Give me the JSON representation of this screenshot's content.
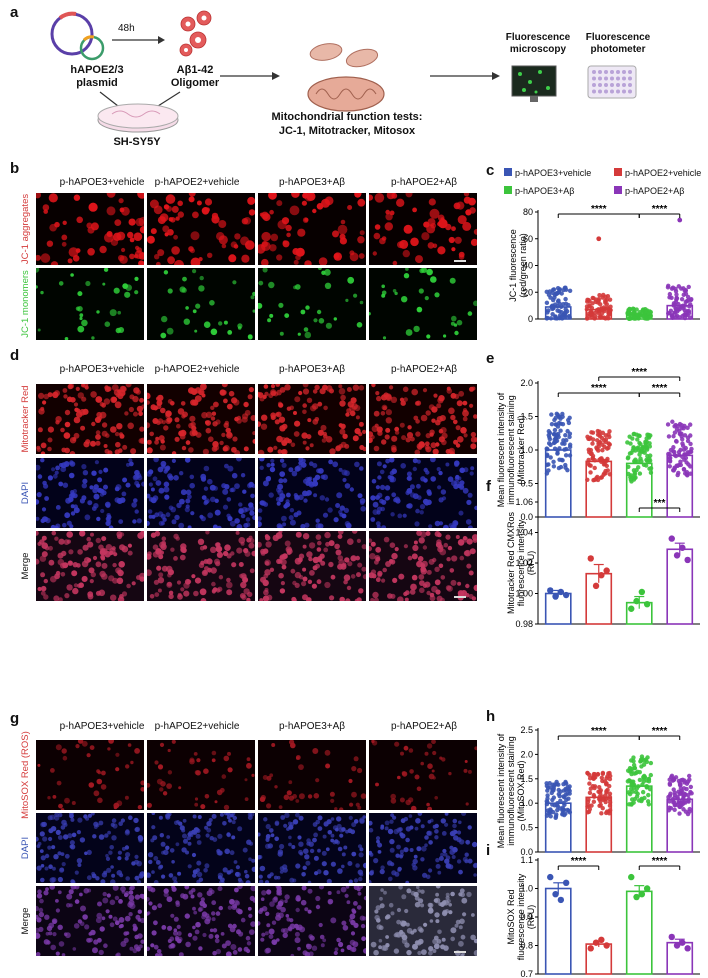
{
  "panels": {
    "a": "a",
    "b": "b",
    "c": "c",
    "d": "d",
    "e": "e",
    "f": "f",
    "g": "g",
    "h": "h",
    "i": "i"
  },
  "schematic": {
    "plasmid_label": "hAPOE2/3\nplasmid",
    "time_label": "48h",
    "oligomer_label": "Aβ1-42\nOligomer",
    "cell_label": "SH-SY5Y",
    "tests_label": "Mitochondrial function tests:\nJC-1, Mitotracker, Mitosox",
    "microscopy_label": "Fluorescence\nmicroscopy",
    "photometer_label": "Fluorescence\nphotometer"
  },
  "groups": [
    "p-hAPOE3+vehicle",
    "p-hAPOE2+vehicle",
    "p-hAPOE3+Aβ",
    "p-hAPOE2+Aβ"
  ],
  "colors": {
    "g1": "#3a55b4",
    "g2": "#d43a3a",
    "g3": "#3cc43c",
    "g4": "#8a35b8"
  },
  "rows": {
    "b": [
      "JC-1 aggregates",
      "JC-1 monomers"
    ],
    "d": [
      "Mitotracker Red",
      "DAPI",
      "Merge"
    ],
    "g": [
      "MitoSOX Red (ROS)",
      "DAPI",
      "Merge"
    ]
  },
  "sig": {
    "four": "****",
    "three": "***"
  },
  "chart_data": [
    {
      "panel": "c",
      "type": "bar",
      "categories": [
        "p-hAPOE3+vehicle",
        "p-hAPOE2+vehicle",
        "p-hAPOE3+Aβ",
        "p-hAPOE2+Aβ"
      ],
      "values": [
        9,
        7,
        3,
        10
      ],
      "ylabel": "JC-1 fluorescence\n(red/green ratio)",
      "ylim": [
        0,
        80
      ],
      "yticks": [
        0,
        20,
        40,
        60,
        80
      ],
      "outliers": [
        null,
        60,
        null,
        74
      ],
      "significance": [
        {
          "from": 1,
          "to": 3,
          "label": "****",
          "level": 0
        },
        {
          "from": 3,
          "to": 4,
          "label": "****",
          "level": 0
        }
      ]
    },
    {
      "panel": "e",
      "type": "bar",
      "categories": [
        "p-hAPOE3+vehicle",
        "p-hAPOE2+vehicle",
        "p-hAPOE3+Aβ",
        "p-hAPOE2+Aβ"
      ],
      "values": [
        1.0,
        0.83,
        0.8,
        0.92
      ],
      "ylabel": "Mean fluorescent intensity of\nimmunofluorescent staining\n(Mitotracker Red)",
      "ylim": [
        0,
        2.0
      ],
      "yticks": [
        0,
        0.5,
        1.0,
        1.5,
        2.0
      ],
      "significance": [
        {
          "from": 2,
          "to": 4,
          "label": "****",
          "level": 1
        },
        {
          "from": 1,
          "to": 3,
          "label": "****",
          "level": 0
        },
        {
          "from": 3,
          "to": 4,
          "label": "****",
          "level": 0
        }
      ]
    },
    {
      "panel": "f",
      "type": "bar",
      "categories": [
        "p-hAPOE3+vehicle",
        "p-hAPOE2+vehicle",
        "p-hAPOE3+Aβ",
        "p-hAPOE2+Aβ"
      ],
      "values": [
        1.0,
        1.013,
        0.994,
        1.029
      ],
      "errors": [
        0.002,
        0.006,
        0.004,
        0.004
      ],
      "points": [
        [
          1.002,
          0.998,
          1.001,
          0.999
        ],
        [
          1.023,
          1.005,
          1.012,
          1.015
        ],
        [
          0.99,
          0.995,
          1.001,
          0.993
        ],
        [
          1.036,
          1.025,
          1.03,
          1.022
        ]
      ],
      "ylabel": "Mitotracker Red CMXRos\nfluorescence intensity\n(RFU)",
      "ylim": [
        0.98,
        1.06
      ],
      "yticks": [
        0.98,
        1.0,
        1.02,
        1.04,
        1.06
      ],
      "significance": [
        {
          "from": 3,
          "to": 4,
          "label": "***",
          "level": 0
        }
      ]
    },
    {
      "panel": "h",
      "type": "bar",
      "categories": [
        "p-hAPOE3+vehicle",
        "p-hAPOE2+vehicle",
        "p-hAPOE3+Aβ",
        "p-hAPOE2+Aβ"
      ],
      "values": [
        1.0,
        1.12,
        1.35,
        1.08
      ],
      "ylabel": "Mean fluorescent intensity of\nimmunofluorescent staining\n(MitoSOX Red)",
      "ylim": [
        0,
        2.5
      ],
      "yticks": [
        0,
        0.5,
        1.0,
        1.5,
        2.0,
        2.5
      ],
      "significance": [
        {
          "from": 1,
          "to": 3,
          "label": "****",
          "level": 0
        },
        {
          "from": 3,
          "to": 4,
          "label": "****",
          "level": 0
        }
      ]
    },
    {
      "panel": "i",
      "type": "bar",
      "categories": [
        "p-hAPOE3+vehicle",
        "p-hAPOE2+vehicle",
        "p-hAPOE3+Aβ",
        "p-hAPOE2+Aβ"
      ],
      "values": [
        1.0,
        0.805,
        0.99,
        0.81
      ],
      "errors": [
        0.02,
        0.01,
        0.02,
        0.012
      ],
      "points": [
        [
          1.04,
          0.98,
          0.96,
          1.02
        ],
        [
          0.79,
          0.81,
          0.82,
          0.8
        ],
        [
          1.04,
          0.97,
          0.98,
          1.0
        ],
        [
          0.83,
          0.8,
          0.81,
          0.79
        ]
      ],
      "ylabel": "MitoSOX Red\nfluorescence intensity\n(RFU)",
      "ylim": [
        0.7,
        1.1
      ],
      "yticks": [
        0.7,
        0.8,
        0.9,
        1.0,
        1.1
      ],
      "significance": [
        {
          "from": 1,
          "to": 2,
          "label": "****",
          "level": 0
        },
        {
          "from": 3,
          "to": 4,
          "label": "****",
          "level": 0
        }
      ]
    }
  ]
}
